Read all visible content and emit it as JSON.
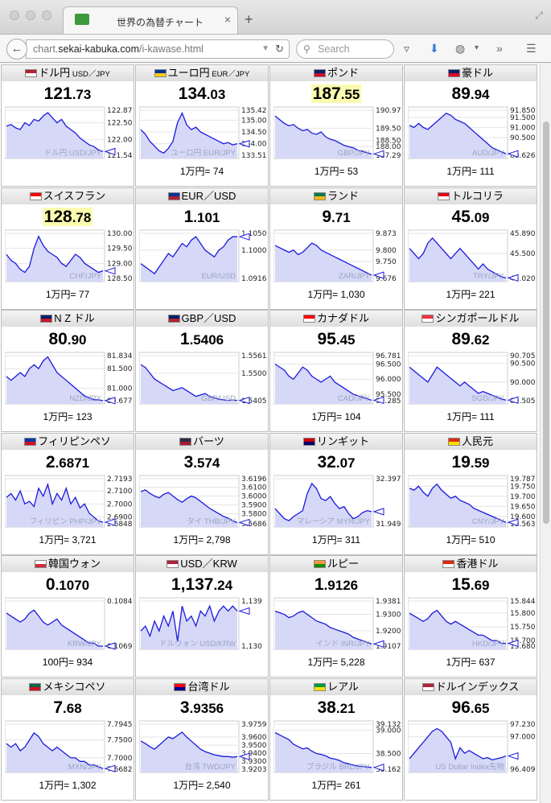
{
  "browser": {
    "tab_title": "世界の為替チャート",
    "tab_close": "×",
    "new_tab": "+",
    "url_prefix": "chart.",
    "url_domain": "sekai-kabuka.com",
    "url_path": "/i-kawase.html",
    "search_placeholder": "Search"
  },
  "cells": [
    {
      "name": "ドル円",
      "sub": " USD／JPY",
      "flag": [
        "#b22234",
        "#ffffff"
      ],
      "int": "121",
      "dec": ".73",
      "hl": false,
      "ticks": [
        "122.87",
        "122.50",
        "122.00",
        "121.54"
      ],
      "overlay": "ドル円 USD/JPY",
      "footer": "",
      "chart_data": {
        "type": "line",
        "y": [
          122.4,
          122.45,
          122.35,
          122.3,
          122.5,
          122.42,
          122.6,
          122.55,
          122.7,
          122.8,
          122.65,
          122.5,
          122.6,
          122.4,
          122.3,
          122.2,
          122.05,
          121.95,
          121.85,
          121.8,
          121.7,
          121.65
        ]
      }
    },
    {
      "name": "ユーロ円",
      "sub": " EUR／JPY",
      "flag": [
        "#003399",
        "#ffcc00"
      ],
      "int": "134",
      "dec": ".03",
      "hl": false,
      "ticks": [
        "135.42",
        "135.00",
        "134.50",
        "134.00",
        "133.51"
      ],
      "overlay": "ユーロ円 EUR/JPY",
      "footer": "1万円= 74",
      "chart_data": {
        "type": "line",
        "y": [
          134.6,
          134.4,
          134.1,
          133.9,
          133.7,
          133.6,
          133.8,
          134.1,
          134.9,
          135.3,
          134.8,
          134.6,
          134.7,
          134.5,
          134.4,
          134.3,
          134.2,
          134.1,
          134.0,
          134.05,
          133.95,
          134.0
        ]
      }
    },
    {
      "name": "ポンド",
      "sub": "",
      "flag": [
        "#012169",
        "#c8102e"
      ],
      "int": "187",
      "dec": ".55",
      "hl": true,
      "ticks": [
        "190.97",
        "189.50",
        "188.50",
        "188.00",
        "187.29"
      ],
      "overlay": "GBP/JPY",
      "footer": "1万円= 53",
      "chart_data": {
        "type": "line",
        "y": [
          190.5,
          190.2,
          189.9,
          189.7,
          189.8,
          189.5,
          189.3,
          189.4,
          189.1,
          189.0,
          189.2,
          188.8,
          188.6,
          188.5,
          188.3,
          188.1,
          188.0,
          187.9,
          187.7,
          187.6,
          187.5,
          187.4
        ]
      }
    },
    {
      "name": "豪ドル",
      "sub": "",
      "flag": [
        "#012169",
        "#e4002b"
      ],
      "int": "89",
      "dec": ".94",
      "hl": false,
      "ticks": [
        "91.850",
        "91.500",
        "91.000",
        "90.500",
        "89.626"
      ],
      "overlay": "AUD/JPY",
      "footer": "1万円= 111",
      "chart_data": {
        "type": "line",
        "y": [
          91.1,
          91.0,
          91.2,
          91.0,
          90.9,
          91.1,
          91.3,
          91.5,
          91.7,
          91.6,
          91.4,
          91.3,
          91.2,
          91.0,
          90.8,
          90.6,
          90.4,
          90.2,
          90.0,
          89.9,
          89.8,
          89.7
        ]
      }
    },
    {
      "name": "スイスフラン",
      "sub": "",
      "flag": [
        "#ff0000",
        "#ffffff"
      ],
      "int": "128",
      "dec": ".78",
      "hl": true,
      "ticks": [
        "130.00",
        "129.50",
        "129.00",
        "128.50"
      ],
      "overlay": "CHF/JPY",
      "footer": "1万円= 77",
      "chart_data": {
        "type": "line",
        "y": [
          129.3,
          129.1,
          129.0,
          128.8,
          128.7,
          128.9,
          129.5,
          129.9,
          129.6,
          129.4,
          129.3,
          129.2,
          129.0,
          128.9,
          129.1,
          129.3,
          129.2,
          129.0,
          128.9,
          128.8,
          128.7,
          128.75
        ]
      }
    },
    {
      "name": "EUR／USD",
      "sub": "",
      "flag": [
        "#003399",
        "#b22234"
      ],
      "int": "1",
      "dec": ".101",
      "hl": false,
      "ticks": [
        "1.1050",
        "1.1000",
        "1.0916"
      ],
      "overlay": "EUR/USD",
      "footer": "",
      "chart_data": {
        "type": "line",
        "y": [
          1.096,
          1.095,
          1.094,
          1.093,
          1.095,
          1.097,
          1.099,
          1.098,
          1.1,
          1.102,
          1.101,
          1.103,
          1.104,
          1.102,
          1.1,
          1.099,
          1.098,
          1.1,
          1.101,
          1.103,
          1.104,
          1.104
        ]
      }
    },
    {
      "name": "ランド",
      "sub": "",
      "flag": [
        "#007a4d",
        "#ffb612"
      ],
      "int": "9",
      "dec": ".71",
      "hl": false,
      "ticks": [
        "9.873",
        "9.800",
        "9.750",
        "9.676"
      ],
      "overlay": "ZAR/JPY",
      "footer": "1万円= 1,030",
      "chart_data": {
        "type": "line",
        "y": [
          9.82,
          9.81,
          9.8,
          9.79,
          9.8,
          9.78,
          9.79,
          9.81,
          9.83,
          9.82,
          9.8,
          9.79,
          9.78,
          9.77,
          9.76,
          9.75,
          9.74,
          9.73,
          9.72,
          9.71,
          9.7,
          9.69
        ]
      }
    },
    {
      "name": "トルコリラ",
      "sub": "",
      "flag": [
        "#e30a17",
        "#ffffff"
      ],
      "int": "45",
      "dec": ".09",
      "hl": false,
      "ticks": [
        "45.890",
        "45.500",
        "45.020"
      ],
      "overlay": "TRY/JPY",
      "footer": "1万円= 221",
      "chart_data": {
        "type": "line",
        "y": [
          45.6,
          45.5,
          45.4,
          45.5,
          45.7,
          45.8,
          45.7,
          45.6,
          45.5,
          45.4,
          45.5,
          45.6,
          45.5,
          45.4,
          45.3,
          45.2,
          45.3,
          45.2,
          45.15,
          45.1,
          45.05,
          45.03
        ]
      }
    },
    {
      "name": "N Z ドル",
      "sub": "",
      "flag": [
        "#012169",
        "#cc142b"
      ],
      "int": "80",
      "dec": ".90",
      "hl": false,
      "ticks": [
        "81.834",
        "81.500",
        "81.000",
        "80.677"
      ],
      "overlay": "NZD/JPY",
      "footer": "1万円= 123",
      "chart_data": {
        "type": "line",
        "y": [
          81.3,
          81.2,
          81.3,
          81.4,
          81.3,
          81.5,
          81.6,
          81.5,
          81.7,
          81.8,
          81.6,
          81.4,
          81.3,
          81.2,
          81.1,
          81.0,
          80.9,
          80.8,
          80.75,
          80.7,
          80.7,
          80.68
        ]
      }
    },
    {
      "name": "GBP／USD",
      "sub": "",
      "flag": [
        "#012169",
        "#b22234"
      ],
      "int": "1",
      "dec": ".5406",
      "hl": false,
      "ticks": [
        "1.5561",
        "1.5500",
        "1.5405"
      ],
      "overlay": "GBP/USD",
      "footer": "",
      "chart_data": {
        "type": "line",
        "y": [
          1.553,
          1.552,
          1.55,
          1.548,
          1.547,
          1.546,
          1.545,
          1.544,
          1.5445,
          1.545,
          1.544,
          1.543,
          1.542,
          1.5425,
          1.543,
          1.542,
          1.5415,
          1.541,
          1.5408,
          1.5406,
          1.5407,
          1.5406
        ]
      }
    },
    {
      "name": "カナダドル",
      "sub": "",
      "flag": [
        "#ff0000",
        "#ffffff"
      ],
      "int": "95",
      "dec": ".45",
      "hl": false,
      "ticks": [
        "96.781",
        "96.500",
        "96.000",
        "95.500",
        "95.285"
      ],
      "overlay": "CAD/JPY",
      "footer": "1万円= 104",
      "chart_data": {
        "type": "line",
        "y": [
          96.5,
          96.4,
          96.3,
          96.1,
          96.0,
          96.2,
          96.4,
          96.3,
          96.1,
          96.0,
          95.9,
          96.0,
          96.1,
          95.9,
          95.8,
          95.7,
          95.6,
          95.5,
          95.45,
          95.4,
          95.35,
          95.3
        ]
      }
    },
    {
      "name": "シンガポールドル",
      "sub": "",
      "flag": [
        "#ef3340",
        "#ffffff"
      ],
      "int": "89",
      "dec": ".62",
      "hl": false,
      "ticks": [
        "90.705",
        "90.500",
        "90.000",
        "89.505"
      ],
      "overlay": "SGD/JPY",
      "footer": "1万円= 111",
      "chart_data": {
        "type": "line",
        "y": [
          90.4,
          90.3,
          90.2,
          90.1,
          90.0,
          90.2,
          90.4,
          90.3,
          90.2,
          90.1,
          90.0,
          89.9,
          90.0,
          89.9,
          89.8,
          89.7,
          89.75,
          89.7,
          89.65,
          89.6,
          89.55,
          89.52
        ]
      }
    },
    {
      "name": "フィリピンペソ",
      "sub": "",
      "flag": [
        "#0038a8",
        "#ce1126"
      ],
      "int": "2",
      "dec": ".6871",
      "hl": false,
      "ticks": [
        "2.7193",
        "2.7100",
        "2.7000",
        "2.6900",
        "2.6848"
      ],
      "overlay": "フィリピン PHP/JPY",
      "footer": "1万円= 3,721",
      "chart_data": {
        "type": "line",
        "y": [
          2.705,
          2.708,
          2.703,
          2.71,
          2.7,
          2.702,
          2.698,
          2.712,
          2.706,
          2.715,
          2.7,
          2.708,
          2.703,
          2.712,
          2.7,
          2.705,
          2.697,
          2.7,
          2.693,
          2.69,
          2.687,
          2.686
        ]
      }
    },
    {
      "name": "バーツ",
      "sub": "",
      "flag": [
        "#2d2a4a",
        "#a51931"
      ],
      "int": "3",
      "dec": ".574",
      "hl": false,
      "ticks": [
        "3.6196",
        "3.6100",
        "3.6000",
        "3.5900",
        "3.5800",
        "3.5686"
      ],
      "overlay": "タイ THB/JPY",
      "footer": "1万円= 2,798",
      "chart_data": {
        "type": "line",
        "y": [
          3.605,
          3.607,
          3.603,
          3.6,
          3.598,
          3.602,
          3.604,
          3.6,
          3.596,
          3.593,
          3.597,
          3.6,
          3.598,
          3.594,
          3.59,
          3.586,
          3.583,
          3.58,
          3.577,
          3.575,
          3.572,
          3.57
        ]
      }
    },
    {
      "name": "リンギット",
      "sub": "",
      "flag": [
        "#cc0001",
        "#010066"
      ],
      "int": "32",
      "dec": ".07",
      "hl": false,
      "ticks": [
        "32.397",
        "31.949"
      ],
      "overlay": "マレーシア MYR/JPY",
      "footer": "1万円= 311",
      "chart_data": {
        "type": "line",
        "y": [
          32.1,
          32.05,
          32.0,
          31.98,
          32.02,
          32.05,
          32.08,
          32.25,
          32.35,
          32.3,
          32.2,
          32.18,
          32.22,
          32.15,
          32.1,
          32.12,
          32.05,
          32.0,
          32.02,
          32.06,
          32.08,
          32.07
        ]
      }
    },
    {
      "name": "人民元",
      "sub": "",
      "flag": [
        "#de2910",
        "#ffde00"
      ],
      "int": "19",
      "dec": ".59",
      "hl": false,
      "ticks": [
        "19.787",
        "19.750",
        "19.700",
        "19.650",
        "19.600",
        "19.563"
      ],
      "overlay": "CNY/JPY",
      "footer": "1万円= 510",
      "chart_data": {
        "type": "line",
        "y": [
          19.74,
          19.73,
          19.75,
          19.72,
          19.7,
          19.74,
          19.76,
          19.73,
          19.71,
          19.69,
          19.7,
          19.68,
          19.67,
          19.66,
          19.64,
          19.63,
          19.62,
          19.61,
          19.6,
          19.59,
          19.58,
          19.57
        ]
      }
    },
    {
      "name": "韓国ウォン",
      "sub": "",
      "flag": [
        "#ffffff",
        "#cd2e3a"
      ],
      "int": "0",
      "dec": ".1070",
      "hl": false,
      "ticks": [
        "0.1084",
        "0.1069"
      ],
      "overlay": "KRW/JPY",
      "footer": "100円= 934",
      "chart_data": {
        "type": "line",
        "y": [
          0.108,
          0.1079,
          0.1078,
          0.1077,
          0.1078,
          0.108,
          0.1081,
          0.1079,
          0.1077,
          0.1076,
          0.1077,
          0.1078,
          0.1076,
          0.1075,
          0.1074,
          0.1073,
          0.1072,
          0.1071,
          0.107,
          0.107,
          0.1069,
          0.1069
        ]
      }
    },
    {
      "name": "USD／KRW",
      "sub": "",
      "flag": [
        "#b22234",
        "#ffffff"
      ],
      "int": "1,137",
      "dec": ".24",
      "hl": false,
      "ticks": [
        "1,139",
        "1,130"
      ],
      "overlay": "ドルウォン USD/KRW",
      "footer": "",
      "chart_data": {
        "type": "line",
        "y": [
          1133,
          1134,
          1132,
          1135,
          1133,
          1136,
          1134,
          1137,
          1131,
          1138,
          1135,
          1136,
          1134,
          1137,
          1136,
          1138,
          1135,
          1137,
          1138,
          1137,
          1138,
          1137
        ]
      }
    },
    {
      "name": "ルピー",
      "sub": "",
      "flag": [
        "#ff9933",
        "#138808"
      ],
      "int": "1",
      "dec": ".9126",
      "hl": false,
      "ticks": [
        "1.9381",
        "1.9300",
        "1.9200",
        "1.9107"
      ],
      "overlay": "インド INR/JPY",
      "footer": "1万円= 5,228",
      "chart_data": {
        "type": "line",
        "y": [
          1.932,
          1.931,
          1.93,
          1.928,
          1.929,
          1.931,
          1.932,
          1.93,
          1.928,
          1.926,
          1.925,
          1.924,
          1.922,
          1.921,
          1.92,
          1.919,
          1.918,
          1.916,
          1.915,
          1.914,
          1.913,
          1.912
        ]
      }
    },
    {
      "name": "香港ドル",
      "sub": "",
      "flag": [
        "#de2910",
        "#ffffff"
      ],
      "int": "15",
      "dec": ".69",
      "hl": false,
      "ticks": [
        "15.844",
        "15.800",
        "15.750",
        "15.700",
        "15.680"
      ],
      "overlay": "HKD/JPY",
      "footer": "1万円= 637",
      "chart_data": {
        "type": "line",
        "y": [
          15.8,
          15.79,
          15.78,
          15.77,
          15.78,
          15.8,
          15.81,
          15.79,
          15.77,
          15.76,
          15.77,
          15.76,
          15.75,
          15.74,
          15.73,
          15.72,
          15.72,
          15.71,
          15.7,
          15.7,
          15.69,
          15.69
        ]
      }
    },
    {
      "name": "メキシコペソ",
      "sub": "",
      "flag": [
        "#006847",
        "#ce1126"
      ],
      "int": "7",
      "dec": ".68",
      "hl": false,
      "ticks": [
        "7.7945",
        "7.7500",
        "7.7000",
        "7.6682"
      ],
      "overlay": "MXN/JPY",
      "footer": "1万円= 1,302",
      "chart_data": {
        "type": "line",
        "y": [
          7.74,
          7.73,
          7.74,
          7.72,
          7.73,
          7.75,
          7.77,
          7.76,
          7.74,
          7.73,
          7.72,
          7.73,
          7.72,
          7.71,
          7.7,
          7.7,
          7.69,
          7.69,
          7.68,
          7.68,
          7.675,
          7.67
        ]
      }
    },
    {
      "name": "台湾ドル",
      "sub": "",
      "flag": [
        "#fe0000",
        "#000095"
      ],
      "int": "3",
      "dec": ".9356",
      "hl": false,
      "ticks": [
        "3.9759",
        "3.9600",
        "3.9500",
        "3.9400",
        "3.9300",
        "3.9203"
      ],
      "overlay": "台湾 TWD/JPY",
      "footer": "1万円= 2,540",
      "chart_data": {
        "type": "line",
        "y": [
          3.955,
          3.952,
          3.948,
          3.945,
          3.95,
          3.955,
          3.96,
          3.958,
          3.962,
          3.966,
          3.96,
          3.955,
          3.95,
          3.945,
          3.942,
          3.94,
          3.938,
          3.937,
          3.936,
          3.936,
          3.935,
          3.936
        ]
      }
    },
    {
      "name": "レアル",
      "sub": "",
      "flag": [
        "#009c3b",
        "#ffdf00"
      ],
      "int": "38",
      "dec": ".21",
      "hl": false,
      "ticks": [
        "39.132",
        "39.000",
        "38.500",
        "38.162"
      ],
      "overlay": "ブラジル BRL/JPY",
      "footer": "1万円= 261",
      "chart_data": {
        "type": "line",
        "y": [
          38.95,
          38.9,
          38.85,
          38.8,
          38.7,
          38.65,
          38.6,
          38.62,
          38.55,
          38.5,
          38.48,
          38.45,
          38.4,
          38.38,
          38.35,
          38.3,
          38.28,
          38.25,
          38.23,
          38.22,
          38.21,
          38.2
        ]
      }
    },
    {
      "name": "ドルインデックス",
      "sub": "",
      "flag": [
        "#b22234",
        "#ffffff"
      ],
      "int": "96",
      "dec": ".65",
      "hl": false,
      "ticks": [
        "97.230",
        "97.000",
        "96.409"
      ],
      "overlay": "US Dollar Index先物",
      "footer": "",
      "chart_data": {
        "type": "line",
        "y": [
          96.6,
          96.7,
          96.8,
          96.9,
          97.0,
          97.1,
          97.15,
          97.1,
          97.0,
          96.9,
          96.6,
          96.8,
          96.7,
          96.75,
          96.7,
          96.65,
          96.6,
          96.62,
          96.58,
          96.6,
          96.62,
          96.65
        ]
      }
    }
  ]
}
